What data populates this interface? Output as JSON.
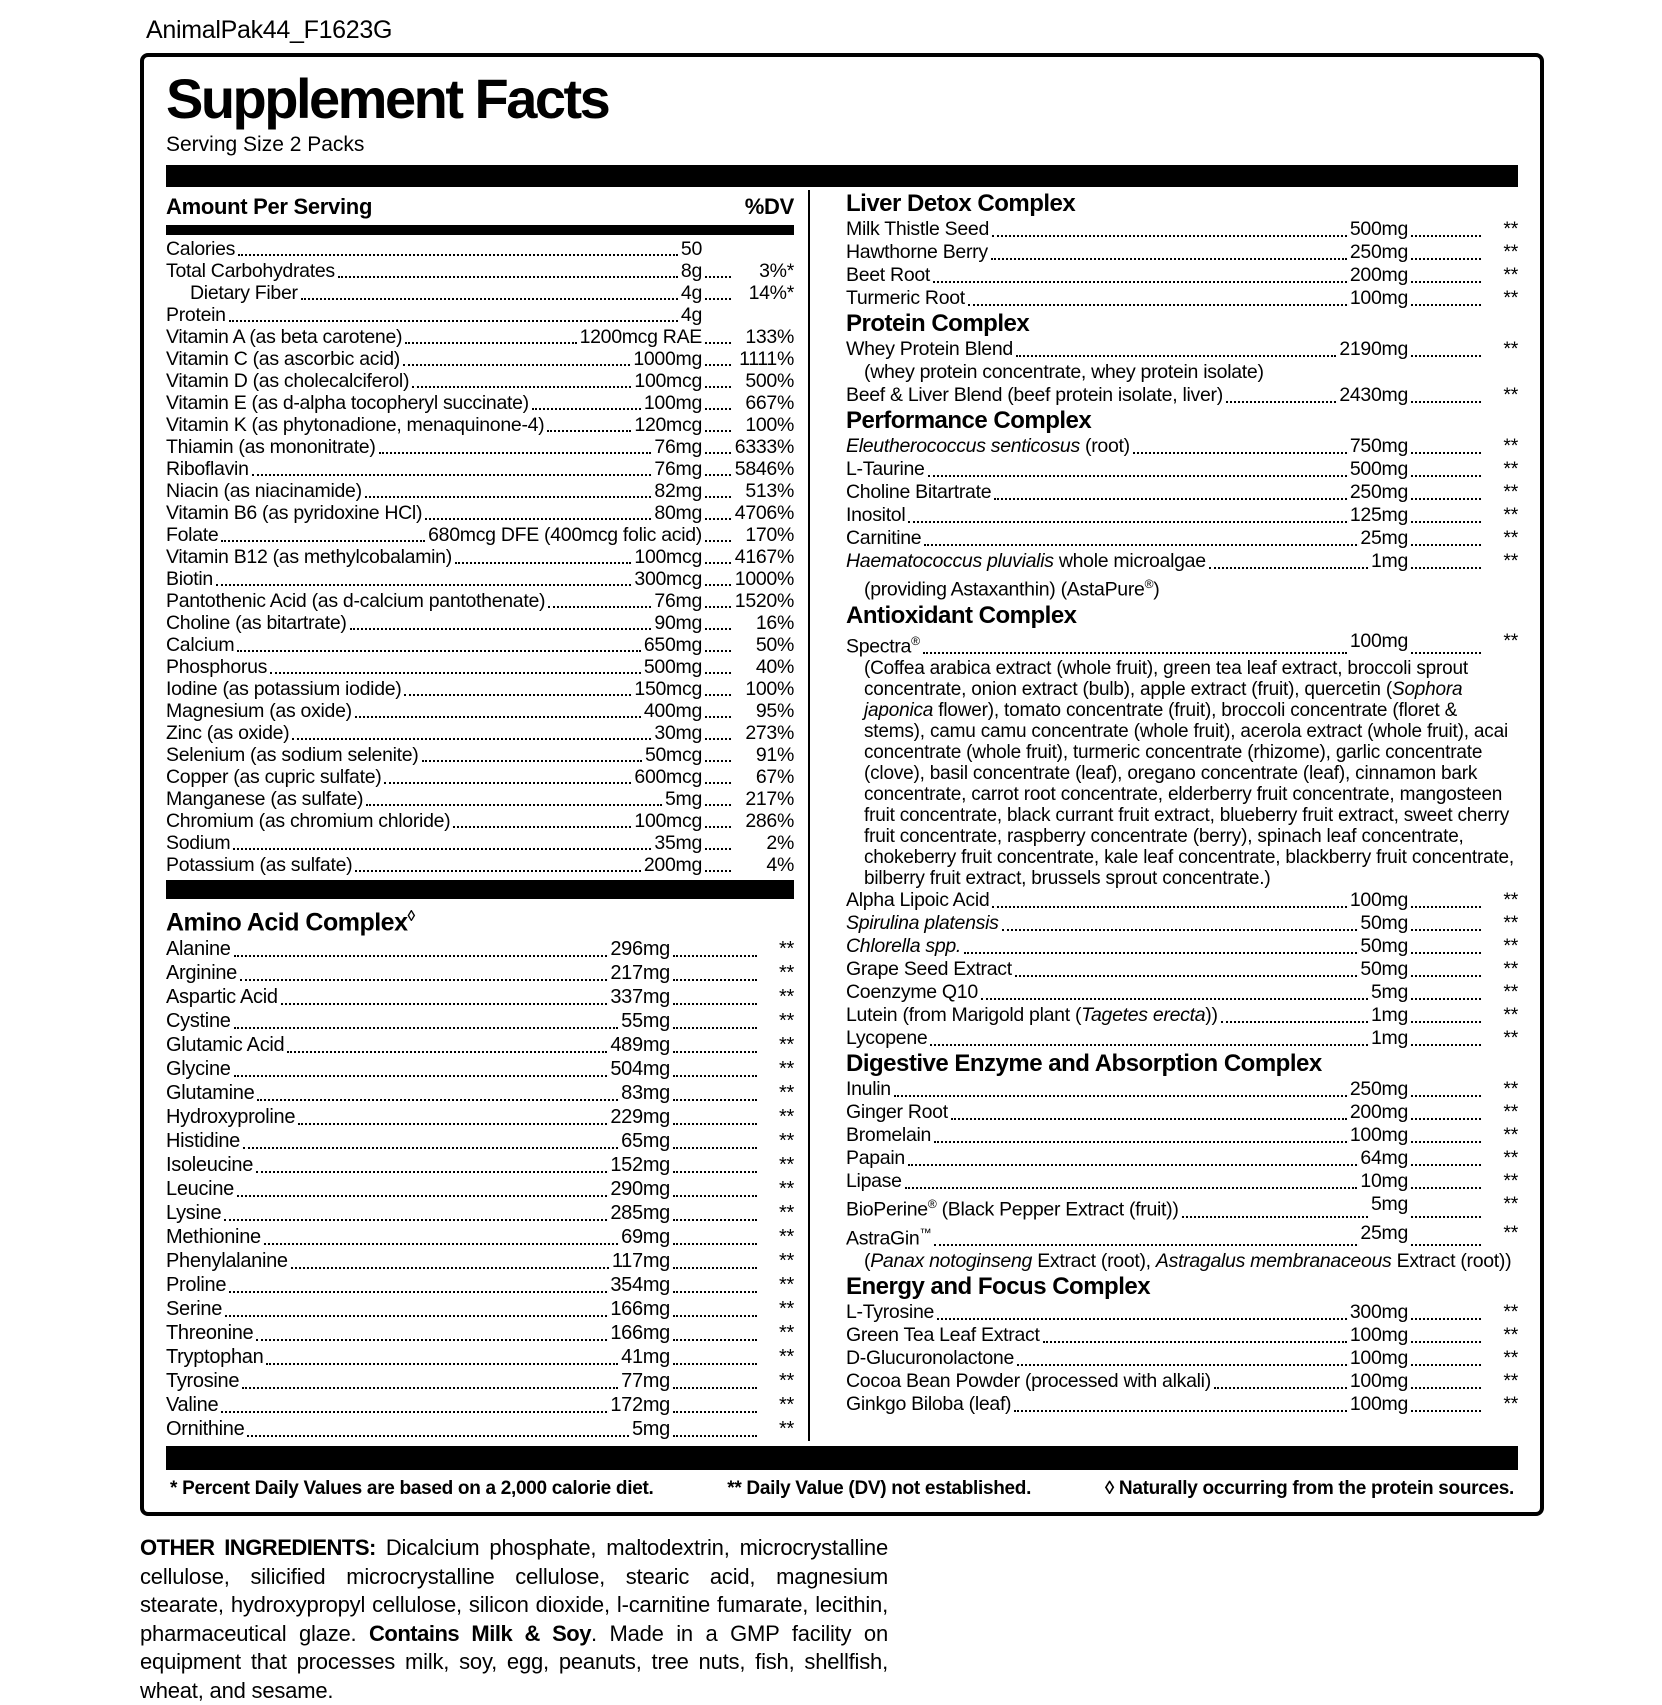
{
  "page": {
    "code": "AnimalPak44_F1623G"
  },
  "label": {
    "title": "Supplement Facts",
    "serving": "Serving Size 2 Packs",
    "left_header": {
      "amount": "Amount Per Serving",
      "dv": "%DV"
    },
    "nutrients": [
      {
        "name": "Calories",
        "amount": "50",
        "dv": ""
      },
      {
        "name": "Total Carbohydrates",
        "amount": "8g",
        "dv": "3%*"
      },
      {
        "name": "Dietary Fiber",
        "amount": "4g",
        "dv": "14%*",
        "indent": true
      },
      {
        "name": "Protein",
        "amount": "4g",
        "dv": ""
      },
      {
        "name": "Vitamin A (as beta carotene)",
        "amount": "1200mcg RAE",
        "dv": "133%"
      },
      {
        "name": "Vitamin C (as ascorbic acid)",
        "amount": "1000mg",
        "dv": "1111%"
      },
      {
        "name": "Vitamin D (as cholecalciferol)",
        "amount": "100mcg",
        "dv": "500%"
      },
      {
        "name": "Vitamin E (as d-alpha tocopheryl succinate)",
        "amount": "100mg",
        "dv": "667%"
      },
      {
        "name": "Vitamin K (as phytonadione, menaquinone-4)",
        "amount": "120mcg",
        "dv": "100%"
      },
      {
        "name": "Thiamin (as mononitrate)",
        "amount": "76mg",
        "dv": "6333%"
      },
      {
        "name": "Riboflavin",
        "amount": "76mg",
        "dv": "5846%"
      },
      {
        "name": "Niacin (as niacinamide)",
        "amount": "82mg",
        "dv": "513%"
      },
      {
        "name": "Vitamin B6 (as pyridoxine HCl)",
        "amount": "80mg",
        "dv": "4706%"
      },
      {
        "name": "Folate",
        "amount": "680mcg DFE (400mcg folic acid)",
        "dv": "170%"
      },
      {
        "name": "Vitamin B12 (as methylcobalamin)",
        "amount": "100mcg",
        "dv": "4167%"
      },
      {
        "name": "Biotin",
        "amount": "300mcg",
        "dv": "1000%"
      },
      {
        "name": "Pantothenic Acid (as d-calcium pantothenate)",
        "amount": "76mg",
        "dv": "1520%"
      },
      {
        "name": "Choline (as bitartrate)",
        "amount": "90mg",
        "dv": "16%"
      },
      {
        "name": "Calcium",
        "amount": "650mg",
        "dv": "50%"
      },
      {
        "name": "Phosphorus",
        "amount": "500mg",
        "dv": "40%"
      },
      {
        "name": "Iodine (as potassium iodide)",
        "amount": "150mcg",
        "dv": "100%"
      },
      {
        "name": "Magnesium (as oxide)",
        "amount": "400mg",
        "dv": "95%"
      },
      {
        "name": "Zinc (as oxide)",
        "amount": "30mg",
        "dv": "273%"
      },
      {
        "name": "Selenium (as sodium selenite)",
        "amount": "50mcg",
        "dv": "91%"
      },
      {
        "name": "Copper (as cupric sulfate)",
        "amount": "600mcg",
        "dv": "67%"
      },
      {
        "name": "Manganese (as sulfate)",
        "amount": "5mg",
        "dv": "217%"
      },
      {
        "name": "Chromium (as chromium chloride)",
        "amount": "100mcg",
        "dv": "286%"
      },
      {
        "name": "Sodium",
        "amount": "35mg",
        "dv": "2%"
      },
      {
        "name": "Potassium (as sulfate)",
        "amount": "200mg",
        "dv": "4%"
      }
    ],
    "amino_heading": [
      [
        "Amino Acid Complex",
        ""
      ],
      [
        "◊",
        "s"
      ]
    ],
    "amino_acids": [
      {
        "name": "Alanine",
        "amount": "296mg",
        "dv": "**"
      },
      {
        "name": "Arginine",
        "amount": "217mg",
        "dv": "**"
      },
      {
        "name": "Aspartic Acid",
        "amount": "337mg",
        "dv": "**"
      },
      {
        "name": "Cystine",
        "amount": "55mg",
        "dv": "**"
      },
      {
        "name": "Glutamic Acid",
        "amount": "489mg",
        "dv": "**"
      },
      {
        "name": "Glycine",
        "amount": "504mg",
        "dv": "**"
      },
      {
        "name": "Glutamine",
        "amount": "83mg",
        "dv": "**"
      },
      {
        "name": "Hydroxyproline",
        "amount": "229mg",
        "dv": "**"
      },
      {
        "name": "Histidine",
        "amount": "65mg",
        "dv": "**"
      },
      {
        "name": "Isoleucine",
        "amount": "152mg",
        "dv": "**"
      },
      {
        "name": "Leucine",
        "amount": "290mg",
        "dv": "**"
      },
      {
        "name": "Lysine",
        "amount": "285mg",
        "dv": "**"
      },
      {
        "name": "Methionine",
        "amount": "69mg",
        "dv": "**"
      },
      {
        "name": "Phenylalanine",
        "amount": "117mg",
        "dv": "**"
      },
      {
        "name": "Proline",
        "amount": "354mg",
        "dv": "**"
      },
      {
        "name": "Serine",
        "amount": "166mg",
        "dv": "**"
      },
      {
        "name": "Threonine",
        "amount": "166mg",
        "dv": "**"
      },
      {
        "name": "Tryptophan",
        "amount": "41mg",
        "dv": "**"
      },
      {
        "name": "Tyrosine",
        "amount": "77mg",
        "dv": "**"
      },
      {
        "name": "Valine",
        "amount": "172mg",
        "dv": "**"
      },
      {
        "name": "Ornithine",
        "amount": "5mg",
        "dv": "**"
      }
    ],
    "sections": [
      {
        "heading": [
          [
            "Liver Detox Complex",
            ""
          ]
        ],
        "rows": [
          {
            "name": [
              [
                "Milk Thistle Seed",
                ""
              ]
            ],
            "amount": "500mg",
            "dv": "**"
          },
          {
            "name": [
              [
                "Hawthorne Berry",
                ""
              ]
            ],
            "amount": "250mg",
            "dv": "**"
          },
          {
            "name": [
              [
                "Beet Root",
                ""
              ]
            ],
            "amount": "200mg",
            "dv": "**"
          },
          {
            "name": [
              [
                "Turmeric Root",
                ""
              ]
            ],
            "amount": "100mg",
            "dv": "**"
          }
        ]
      },
      {
        "heading": [
          [
            "Protein Complex",
            ""
          ]
        ],
        "rows": [
          {
            "name": [
              [
                "Whey Protein Blend",
                ""
              ]
            ],
            "amount": "2190mg",
            "dv": "**"
          },
          {
            "type": "note",
            "segs": [
              [
                "(whey protein concentrate, whey protein isolate)",
                ""
              ]
            ]
          },
          {
            "name": [
              [
                "Beef & Liver Blend (beef protein isolate, liver)",
                ""
              ]
            ],
            "amount": "2430mg",
            "dv": "**"
          }
        ]
      },
      {
        "heading": [
          [
            "Performance Complex",
            ""
          ]
        ],
        "rows": [
          {
            "name": [
              [
                "Eleutherococcus senticosus",
                "i"
              ],
              [
                " (root)",
                ""
              ]
            ],
            "amount": "750mg",
            "dv": "**"
          },
          {
            "name": [
              [
                "L-Taurine",
                ""
              ]
            ],
            "amount": "500mg",
            "dv": "**"
          },
          {
            "name": [
              [
                "Choline Bitartrate",
                ""
              ]
            ],
            "amount": "250mg",
            "dv": "**"
          },
          {
            "name": [
              [
                "Inositol",
                ""
              ]
            ],
            "amount": "125mg",
            "dv": "**"
          },
          {
            "name": [
              [
                "Carnitine",
                ""
              ]
            ],
            "amount": "25mg",
            "dv": "**"
          },
          {
            "name": [
              [
                "Haematococcus pluvialis",
                "i"
              ],
              [
                " whole microalgae",
                ""
              ]
            ],
            "amount": "1mg",
            "dv": "**"
          },
          {
            "type": "note",
            "segs": [
              [
                "(providing Astaxanthin) (AstaPure",
                ""
              ],
              [
                "®",
                "s"
              ],
              [
                ")",
                ""
              ]
            ]
          }
        ]
      },
      {
        "heading": [
          [
            "Antioxidant Complex",
            ""
          ]
        ],
        "rows": [
          {
            "name": [
              [
                "Spectra",
                ""
              ],
              [
                "®",
                "s"
              ],
              [
                " ",
                ""
              ]
            ],
            "amount": "100mg",
            "dv": "**"
          },
          {
            "type": "para",
            "segs": [
              [
                "(Coffea arabica extract (whole fruit), green tea leaf extract, broccoli sprout concentrate, onion extract (bulb), apple extract (fruit), quercetin (",
                ""
              ],
              [
                "Sophora japonica",
                "i"
              ],
              [
                " flower), tomato concentrate (fruit), broccoli concentrate (floret & stems), camu camu concentrate (whole fruit), acerola extract (whole fruit), acai concentrate (whole fruit), turmeric concentrate (rhizome), garlic concentrate (clove), basil concentrate (leaf), oregano concentrate (leaf), cinnamon bark concentrate, carrot root concentrate, elderberry fruit concentrate, mangosteen fruit concentrate, black currant fruit extract, blueberry fruit extract, sweet cherry fruit concentrate, raspberry concentrate (berry), spinach leaf concentrate, chokeberry fruit concentrate, kale leaf concentrate, blackberry fruit concentrate, bilberry fruit extract, brussels sprout concentrate.)",
                ""
              ]
            ]
          },
          {
            "name": [
              [
                "Alpha Lipoic Acid",
                ""
              ]
            ],
            "amount": "100mg",
            "dv": "**"
          },
          {
            "name": [
              [
                "Spirulina platensis",
                "i"
              ]
            ],
            "amount": "50mg",
            "dv": "**"
          },
          {
            "name": [
              [
                "Chlorella spp.",
                "i"
              ]
            ],
            "amount": "50mg",
            "dv": "**"
          },
          {
            "name": [
              [
                "Grape Seed Extract",
                ""
              ]
            ],
            "amount": "50mg",
            "dv": "**"
          },
          {
            "name": [
              [
                "Coenzyme Q10",
                ""
              ]
            ],
            "amount": "5mg",
            "dv": "**"
          },
          {
            "name": [
              [
                "Lutein (from Marigold plant (",
                ""
              ],
              [
                "Tagetes erecta",
                "i"
              ],
              [
                "))",
                ""
              ]
            ],
            "amount": "1mg",
            "dv": "**"
          },
          {
            "name": [
              [
                "Lycopene",
                ""
              ]
            ],
            "amount": "1mg",
            "dv": "**"
          }
        ]
      },
      {
        "heading": [
          [
            "Digestive Enzyme and Absorption Complex",
            ""
          ]
        ],
        "rows": [
          {
            "name": [
              [
                "Inulin",
                ""
              ]
            ],
            "amount": "250mg",
            "dv": "**"
          },
          {
            "name": [
              [
                "Ginger Root",
                ""
              ]
            ],
            "amount": "200mg",
            "dv": "**"
          },
          {
            "name": [
              [
                "Bromelain",
                ""
              ]
            ],
            "amount": "100mg",
            "dv": "**"
          },
          {
            "name": [
              [
                "Papain",
                ""
              ]
            ],
            "amount": "64mg",
            "dv": "**"
          },
          {
            "name": [
              [
                "Lipase",
                ""
              ]
            ],
            "amount": "10mg",
            "dv": "**"
          },
          {
            "name": [
              [
                "BioPerine",
                ""
              ],
              [
                "®",
                "s"
              ],
              [
                " (Black Pepper Extract (fruit))",
                ""
              ]
            ],
            "amount": "5mg",
            "dv": "**"
          },
          {
            "name": [
              [
                "AstraGin",
                ""
              ],
              [
                "™",
                "s"
              ]
            ],
            "amount": "25mg",
            "dv": "**"
          },
          {
            "type": "note",
            "segs": [
              [
                "(",
                ""
              ],
              [
                "Panax notoginseng",
                "i"
              ],
              [
                " Extract (root), ",
                ""
              ],
              [
                "Astragalus membranaceous",
                "i"
              ],
              [
                " Extract (root))",
                ""
              ]
            ]
          }
        ]
      },
      {
        "heading": [
          [
            "Energy and Focus Complex",
            ""
          ]
        ],
        "rows": [
          {
            "name": [
              [
                "L-Tyrosine",
                ""
              ]
            ],
            "amount": "300mg",
            "dv": "**"
          },
          {
            "name": [
              [
                "Green Tea Leaf Extract",
                ""
              ]
            ],
            "amount": "100mg",
            "dv": "**"
          },
          {
            "name": [
              [
                "D-Glucuronolactone",
                ""
              ]
            ],
            "amount": "100mg",
            "dv": "**"
          },
          {
            "name": [
              [
                "Cocoa Bean Powder (processed with alkali)",
                ""
              ]
            ],
            "amount": "100mg",
            "dv": "**"
          },
          {
            "name": [
              [
                "Ginkgo Biloba (leaf)",
                ""
              ]
            ],
            "amount": "100mg",
            "dv": "**"
          }
        ]
      }
    ],
    "footnotes": [
      "* Percent Daily Values are based on a 2,000 calorie diet.",
      "** Daily Value (DV) not established.",
      "◊ Naturally occurring from the protein sources."
    ]
  },
  "other_ingredients": {
    "segs": [
      [
        "OTHER INGREDIENTS:",
        "b"
      ],
      [
        " Dicalcium phosphate, maltodextrin, microcrystalline cellulose, silicified microcrystalline cellulose, stearic acid, magnesium stearate, hydroxypropyl cellulose, silicon dioxide, l-carnitine fumarate, lecithin, pharmaceutical glaze. ",
        ""
      ],
      [
        "Contains Milk & Soy",
        "b"
      ],
      [
        ". Made in a GMP facility on equipment that processes milk, soy, egg, peanuts, tree nuts, fish, shellfish, wheat, and sesame.",
        ""
      ]
    ]
  }
}
